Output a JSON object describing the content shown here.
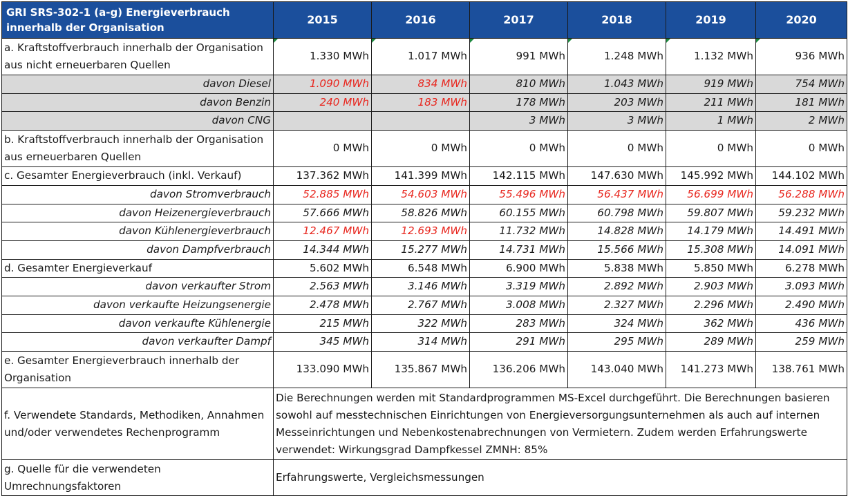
{
  "header": {
    "title": "GRI SRS-302-1 (a-g) Energieverbrauch innerhalb der Organisation",
    "years": [
      "2015",
      "2016",
      "2017",
      "2018",
      "2019",
      "2020"
    ]
  },
  "rows": [
    {
      "label": "a. Kraftstoffverbrauch innerhalb der Organisation aus nicht erneuerbaren Quellen",
      "values": [
        "1.330 MWh",
        "1.017 MWh",
        "991 MWh",
        "1.248 MWh",
        "1.132 MWh",
        "936 MWh"
      ]
    },
    {
      "label": "davon Diesel",
      "values": [
        "1.090 MWh",
        "834 MWh",
        "810 MWh",
        "1.043 MWh",
        "919 MWh",
        "754 MWh"
      ]
    },
    {
      "label": "davon Benzin",
      "values": [
        "240 MWh",
        "183 MWh",
        "178 MWh",
        "203 MWh",
        "211 MWh",
        "181 MWh"
      ]
    },
    {
      "label": "davon CNG",
      "values": [
        "",
        "",
        "3 MWh",
        "3 MWh",
        "1 MWh",
        "2 MWh"
      ]
    },
    {
      "label": "b. Kraftstoffverbrauch innerhalb der Organisation aus erneuerbaren Quellen",
      "values": [
        "0 MWh",
        "0 MWh",
        "0 MWh",
        "0 MWh",
        "0 MWh",
        "0 MWh"
      ]
    },
    {
      "label": "c. Gesamter Energieverbrauch (inkl. Verkauf)",
      "values": [
        "137.362 MWh",
        "141.399 MWh",
        "142.115 MWh",
        "147.630 MWh",
        "145.992 MWh",
        "144.102 MWh"
      ]
    },
    {
      "label": "davon Stromverbrauch",
      "values": [
        "52.885 MWh",
        "54.603 MWh",
        "55.496 MWh",
        "56.437 MWh",
        "56.699 MWh",
        "56.288 MWh"
      ]
    },
    {
      "label": "davon Heizenergieverbrauch",
      "values": [
        "57.666 MWh",
        "58.826 MWh",
        "60.155 MWh",
        "60.798 MWh",
        "59.807 MWh",
        "59.232 MWh"
      ]
    },
    {
      "label": "davon Kühlenergieverbrauch",
      "values": [
        "12.467 MWh",
        "12.693 MWh",
        "11.732 MWh",
        "14.828 MWh",
        "14.179 MWh",
        "14.491 MWh"
      ]
    },
    {
      "label": "davon Dampfverbrauch",
      "values": [
        "14.344 MWh",
        "15.277 MWh",
        "14.731 MWh",
        "15.566 MWh",
        "15.308 MWh",
        "14.091 MWh"
      ]
    },
    {
      "label": "d. Gesamter Energieverkauf",
      "values": [
        "5.602 MWh",
        "6.548 MWh",
        "6.900 MWh",
        "5.838 MWh",
        "5.850 MWh",
        "6.278 MWh"
      ]
    },
    {
      "label": "davon verkaufter Strom",
      "values": [
        "2.563 MWh",
        "3.146 MWh",
        "3.319 MWh",
        "2.892 MWh",
        "2.903 MWh",
        "3.093 MWh"
      ]
    },
    {
      "label": "davon verkaufte Heizungsenergie",
      "values": [
        "2.478 MWh",
        "2.767 MWh",
        "3.008 MWh",
        "2.327 MWh",
        "2.296 MWh",
        "2.490 MWh"
      ]
    },
    {
      "label": "davon verkaufte Kühlenergie",
      "values": [
        "215 MWh",
        "322 MWh",
        "283 MWh",
        "324 MWh",
        "362 MWh",
        "436 MWh"
      ]
    },
    {
      "label": "davon verkaufter Dampf",
      "values": [
        "345 MWh",
        "314 MWh",
        "291 MWh",
        "295 MWh",
        "289 MWh",
        "259 MWh"
      ]
    },
    {
      "label": "e. Gesamter Energieverbrauch innerhalb der Organisation",
      "values": [
        "133.090 MWh",
        "135.867 MWh",
        "136.206 MWh",
        "143.040 MWh",
        "141.273 MWh",
        "138.761 MWh"
      ]
    }
  ],
  "notes": [
    {
      "label": "f. Verwendete Standards, Methodiken, Annahmen und/oder verwendetes Rechenprogramm",
      "text": "Die Berechnungen werden mit Standardprogrammen MS-Excel durchgeführt. Die Berechnungen basieren sowohl auf messtechnischen Einrichtungen von Energieversorgungsunternehmen als auch auf internen Messeinrichtungen und Nebenkostenabrechnungen von Vermietern. Zudem werden Erfahrungswerte verwendet: Wirkungsgrad Dampfkessel ZMNH: 85%"
    },
    {
      "label": "g. Quelle für die verwendeten Umrechnungsfaktoren",
      "text": "Erfahrungswerte, Vergleichsmessungen"
    }
  ],
  "colors": {
    "header_bg": "#1b4f9c",
    "header_text": "#ffffff",
    "grey_row": "#d9d9d9",
    "red_value": "#e8271f",
    "comment_marker": "#1d8a3e"
  }
}
